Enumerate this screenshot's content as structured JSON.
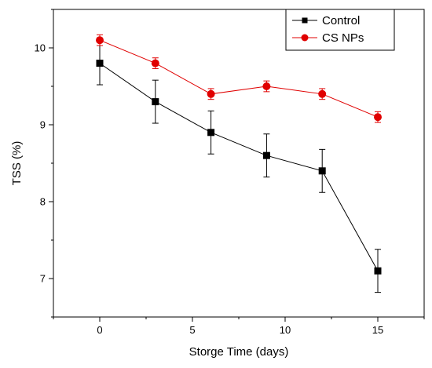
{
  "chart_data": {
    "type": "line",
    "xlabel": "Storge Time (days)",
    "ylabel": "TSS (%)",
    "xlim": [
      -2.5,
      17.5
    ],
    "ylim": [
      6.5,
      10.5
    ],
    "xticks": [
      0,
      5,
      10,
      15
    ],
    "yticks": [
      7,
      8,
      9,
      10
    ],
    "x": [
      0,
      3,
      6,
      9,
      12,
      15
    ],
    "series": [
      {
        "name": "Control",
        "color": "#000000",
        "marker": "square",
        "values": [
          9.8,
          9.3,
          8.9,
          8.6,
          8.4,
          7.1
        ],
        "errors": [
          0.28,
          0.28,
          0.28,
          0.28,
          0.28,
          0.28
        ]
      },
      {
        "name": "CS NPs",
        "color": "#e00000",
        "marker": "circle",
        "values": [
          10.1,
          9.8,
          9.4,
          9.5,
          9.4,
          9.1
        ],
        "errors": [
          0.07,
          0.07,
          0.07,
          0.07,
          0.07,
          0.07
        ]
      }
    ],
    "legend_position": "top-right"
  }
}
